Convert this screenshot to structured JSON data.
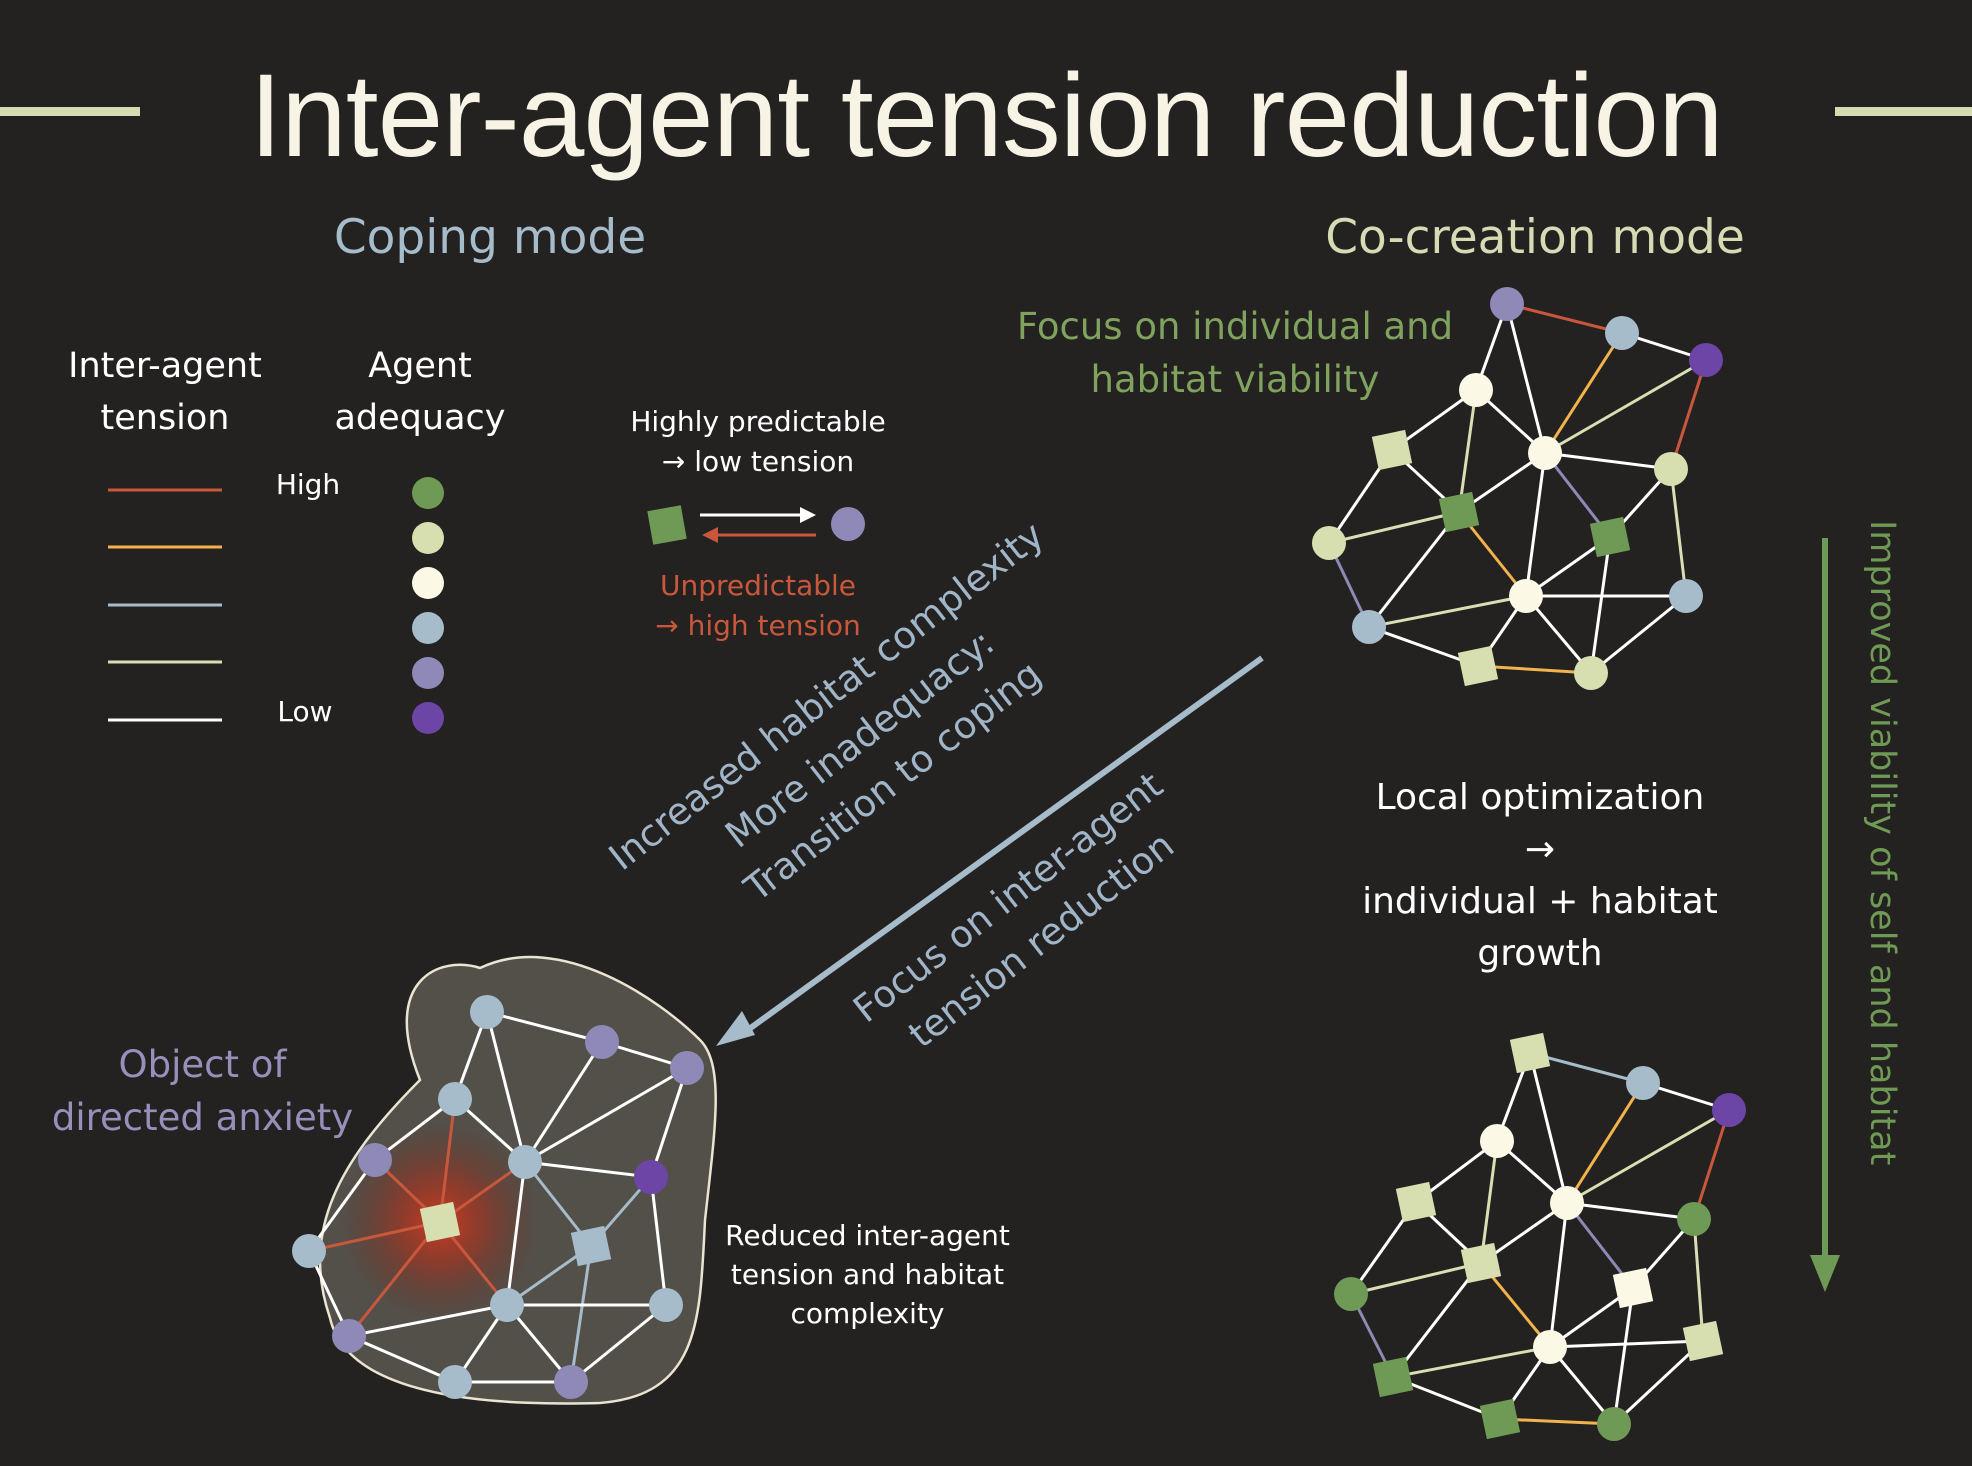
{
  "title": "Inter-agent tension reduction",
  "modes": {
    "coping": "Coping mode",
    "cocreation": "Co-creation mode"
  },
  "legend": {
    "tension_heading": [
      "Inter-agent",
      "tension"
    ],
    "adequacy_heading": [
      "Agent",
      "adequacy"
    ],
    "high": "High",
    "low": "Low",
    "tension_colors": [
      "#c8573b",
      "#f2b24c",
      "#a7bccb",
      "#d8dfb2",
      "#ffffff"
    ],
    "adequacy_colors": [
      "#6f9a55",
      "#d7deb0",
      "#fbf8e6",
      "#a7bccb",
      "#8f89b7",
      "#6d45a6"
    ]
  },
  "prediction": {
    "predictable": [
      "Highly predictable",
      "→ low tension"
    ],
    "unpredictable": [
      "Unpredictable",
      "→ high tension"
    ]
  },
  "cocreation_focus": [
    "Focus on individual and",
    "habitat viability"
  ],
  "transition": [
    "Increased habitat complexity",
    "More inadequacy:",
    "Transition to coping"
  ],
  "coping_focus": [
    "Focus on inter-agent",
    "tension reduction"
  ],
  "local_optimization": [
    "Local optimization",
    "→",
    "individual + habitat",
    "growth"
  ],
  "improved_viability": "Improved viability of self and habitat",
  "anxiety_object": [
    "Object of",
    "directed anxiety"
  ],
  "reduced_tension": [
    "Reduced inter-agent",
    "tension and habitat",
    "complexity"
  ],
  "colors": {
    "background": "#242121",
    "title": "#f7f4e6",
    "coping": "#a7bccb",
    "cocreation": "#d5dcb4",
    "focus_green": "#7fa35e",
    "anxiety_purple": "#9690bb",
    "tension_red": "#c8573b",
    "arrow_blue": "#a7bccb",
    "arrow_green": "#6f9a55"
  }
}
